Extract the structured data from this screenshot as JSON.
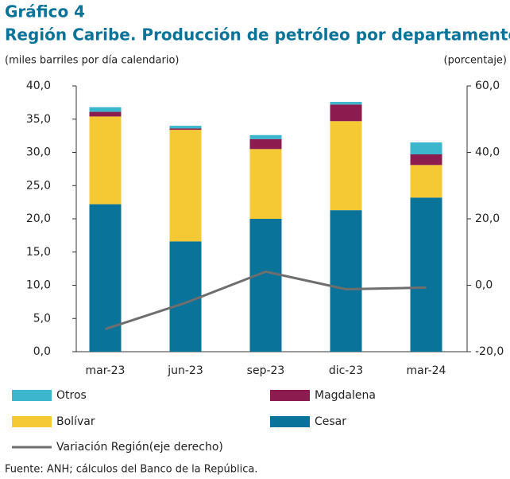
{
  "chart_data": {
    "type": "bar",
    "title": "Gráfico 4",
    "subtitle": "Región Caribe. Producción de petróleo por departamento",
    "y_label": "(miles barriles por día calendario)",
    "y2_label": "(porcentaje)",
    "source": "Fuente: ANH; cálculos del Banco de la República.",
    "categories": [
      "mar-23",
      "jun-23",
      "sep-23",
      "dic-23",
      "mar-24"
    ],
    "series": [
      {
        "name": "Cesar",
        "color": "#0a7399",
        "values": [
          22.2,
          16.6,
          20.0,
          21.3,
          23.2
        ]
      },
      {
        "name": "Bolívar",
        "color": "#f5c934",
        "values": [
          13.2,
          16.8,
          10.5,
          13.4,
          4.9
        ]
      },
      {
        "name": "Magdalena",
        "color": "#8c1c4f",
        "values": [
          0.7,
          0.2,
          1.5,
          2.5,
          1.6
        ]
      },
      {
        "name": "Otros",
        "color": "#3bb6cc",
        "values": [
          0.7,
          0.4,
          0.6,
          0.4,
          1.8
        ]
      },
      {
        "name": "Variación Región(eje derecho)",
        "color": "#6e6e6e",
        "type": "line",
        "axis": "y2",
        "values": [
          -13.2,
          -5.3,
          4.1,
          -1.2,
          -0.7
        ]
      }
    ],
    "ylim": [
      0,
      40
    ],
    "yticks": [
      {
        "value": 0,
        "label": "0,0"
      },
      {
        "value": 5,
        "label": "5,0"
      },
      {
        "value": 10,
        "label": "10,0"
      },
      {
        "value": 15,
        "label": "15,0"
      },
      {
        "value": 20,
        "label": "20,0"
      },
      {
        "value": 25,
        "label": "25,0"
      },
      {
        "value": 30,
        "label": "30,0"
      },
      {
        "value": 35,
        "label": "35,0"
      },
      {
        "value": 40,
        "label": "40,0"
      }
    ],
    "y2lim": [
      -20,
      60
    ],
    "y2ticks": [
      {
        "value": -20,
        "label": "-20,0"
      },
      {
        "value": 0,
        "label": "0,0"
      },
      {
        "value": 20,
        "label": "20,0"
      },
      {
        "value": 40,
        "label": "40,0"
      },
      {
        "value": 60,
        "label": "60,0"
      }
    ],
    "stacked": true
  }
}
